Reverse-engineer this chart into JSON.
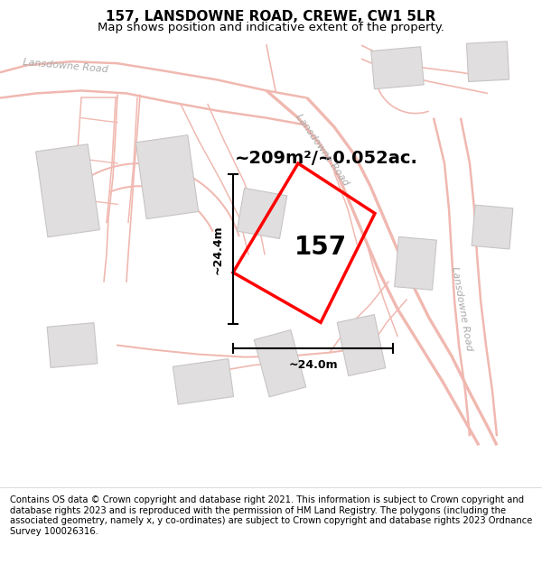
{
  "title": "157, LANSDOWNE ROAD, CREWE, CW1 5LR",
  "subtitle": "Map shows position and indicative extent of the property.",
  "footer": "Contains OS data © Crown copyright and database right 2021. This information is subject to Crown copyright and database rights 2023 and is reproduced with the permission of HM Land Registry. The polygons (including the associated geometry, namely x, y co-ordinates) are subject to Crown copyright and database rights 2023 Ordnance Survey 100026316.",
  "area_label": "~209m²/~0.052ac.",
  "property_number": "157",
  "dim_width": "~24.0m",
  "dim_height": "~24.4m",
  "road_color": "#f0b8b0",
  "road_lw": 1.2,
  "building_color": "#e0dede",
  "building_edge_color": "#c8c4c4",
  "property_color": "#ff0000",
  "map_bg": "#f9f7f7",
  "title_fontsize": 11,
  "subtitle_fontsize": 9.5,
  "footer_fontsize": 7.2,
  "road_label_color": "#aaaaaa",
  "road_label_size": 8
}
